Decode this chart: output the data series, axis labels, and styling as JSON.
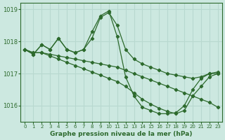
{
  "title": "Graphe pression niveau de la mer (hPa)",
  "bg_color": "#cce8e0",
  "grid_color": "#b8d8cf",
  "line_color": "#2d6a2d",
  "series": [
    {
      "x": [
        0,
        1,
        2,
        3,
        4,
        5,
        6,
        7,
        8,
        9,
        10,
        11,
        12,
        13,
        14,
        15,
        16,
        17,
        18,
        19,
        20,
        21,
        22,
        23
      ],
      "y": [
        1017.75,
        1017.6,
        1017.9,
        1017.75,
        1018.1,
        1017.75,
        1017.65,
        1017.75,
        1018.1,
        1018.75,
        1018.9,
        1018.5,
        1017.75,
        1017.45,
        1017.3,
        1017.2,
        1017.1,
        1017.0,
        1016.95,
        1016.9,
        1016.85,
        1016.9,
        1017.0,
        1017.0
      ]
    },
    {
      "x": [
        0,
        1,
        2,
        3,
        4,
        5,
        6,
        7,
        8,
        9,
        10,
        11,
        12,
        13,
        14,
        15,
        16,
        17,
        18,
        19,
        20,
        21,
        22,
        23
      ],
      "y": [
        1017.75,
        1017.6,
        1017.9,
        1017.75,
        1018.1,
        1017.75,
        1017.65,
        1017.75,
        1018.3,
        1018.8,
        1018.95,
        1018.15,
        1016.9,
        1016.3,
        1015.95,
        1015.85,
        1015.75,
        1015.75,
        1015.78,
        1016.0,
        1016.5,
        1016.85,
        1017.0,
        1017.05
      ]
    },
    {
      "x": [
        0,
        1,
        2,
        3,
        4,
        5,
        6,
        7,
        8,
        9,
        10,
        11,
        12,
        13,
        14,
        15,
        16,
        17,
        18,
        19,
        20,
        21,
        22,
        23
      ],
      "y": [
        1017.75,
        1017.65,
        1017.65,
        1017.6,
        1017.55,
        1017.5,
        1017.45,
        1017.4,
        1017.35,
        1017.3,
        1017.25,
        1017.2,
        1017.1,
        1017.0,
        1016.9,
        1016.8,
        1016.7,
        1016.6,
        1016.5,
        1016.4,
        1016.3,
        1016.2,
        1016.1,
        1015.95
      ]
    },
    {
      "x": [
        0,
        1,
        2,
        3,
        4,
        5,
        6,
        7,
        8,
        9,
        10,
        11,
        12,
        13,
        14,
        15,
        16,
        17,
        18,
        19,
        20,
        21,
        22,
        23
      ],
      "y": [
        1017.75,
        1017.65,
        1017.65,
        1017.55,
        1017.45,
        1017.35,
        1017.25,
        1017.15,
        1017.05,
        1016.95,
        1016.85,
        1016.75,
        1016.6,
        1016.4,
        1016.2,
        1016.05,
        1015.92,
        1015.82,
        1015.75,
        1015.85,
        1016.3,
        1016.6,
        1016.9,
        1017.0
      ]
    }
  ],
  "xlim": [
    -0.5,
    23.5
  ],
  "ylim": [
    1015.5,
    1019.2
  ],
  "yticks": [
    1016,
    1017,
    1018,
    1019
  ],
  "xticks": [
    0,
    1,
    2,
    3,
    4,
    5,
    6,
    7,
    8,
    9,
    10,
    11,
    12,
    13,
    14,
    15,
    16,
    17,
    18,
    19,
    20,
    21,
    22,
    23
  ],
  "marker": "D",
  "markersize": 2.2,
  "linewidth": 0.9
}
